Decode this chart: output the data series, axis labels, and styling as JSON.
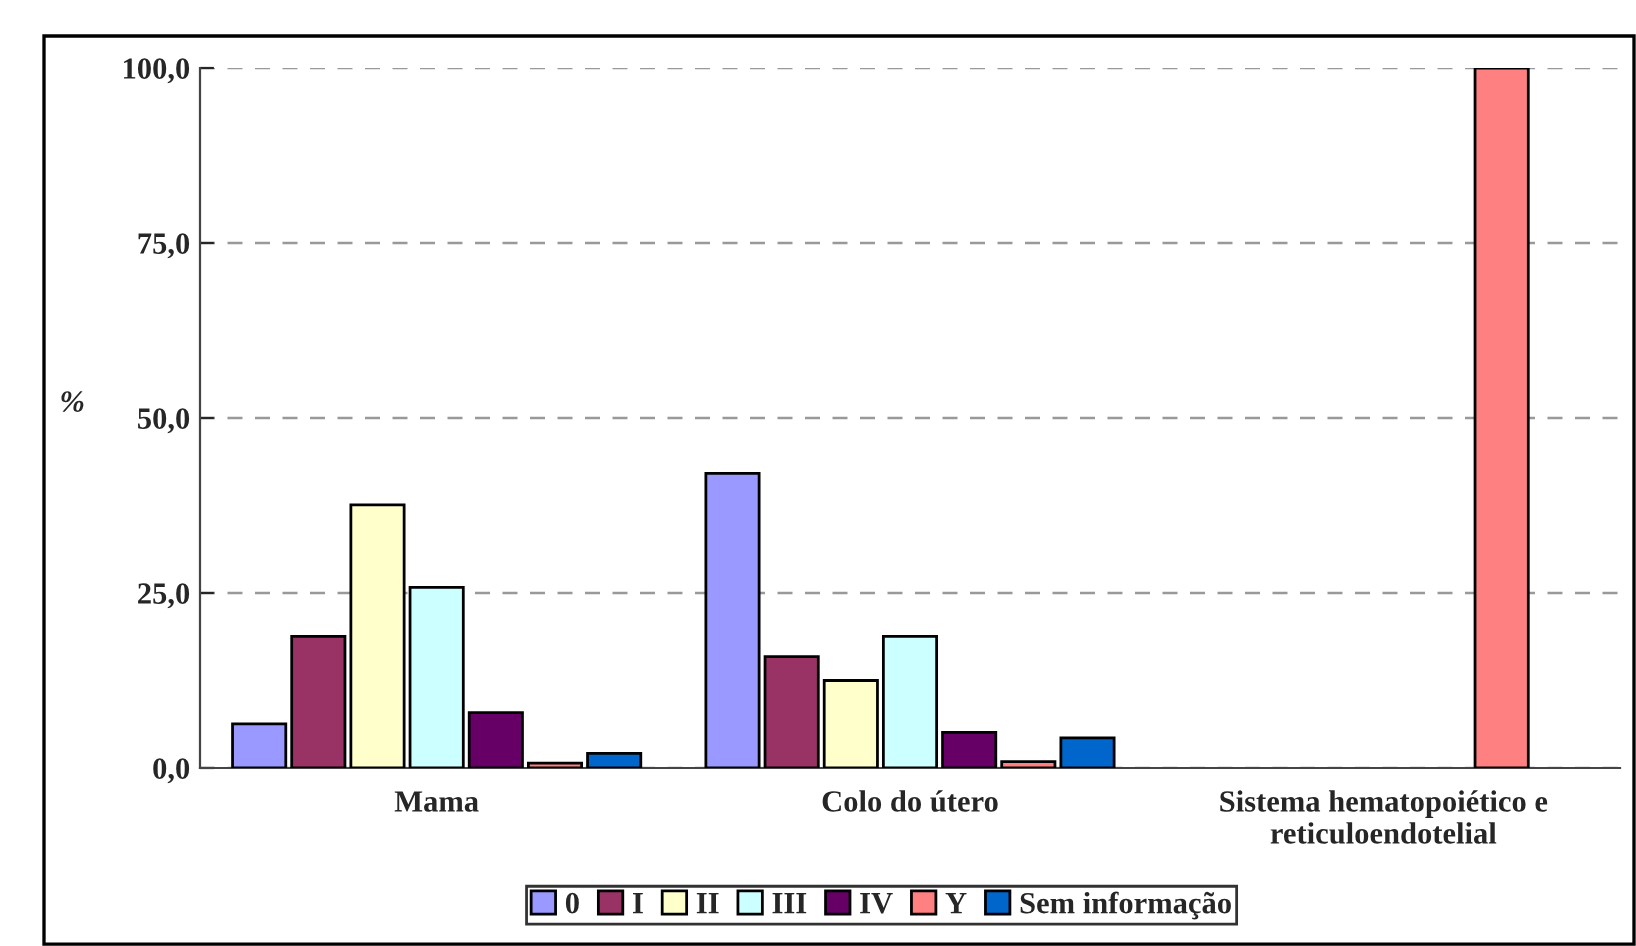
{
  "chart_data": {
    "type": "bar",
    "ylabel": "%",
    "categories": [
      "Mama",
      "Colo do útero",
      "Sistema hematopoiético e\nreticuloendotelial"
    ],
    "series": [
      {
        "name": "0",
        "color": "#9999ff",
        "values": [
          6.3,
          42.1,
          null
        ]
      },
      {
        "name": "I",
        "color": "#993366",
        "values": [
          18.8,
          15.9,
          null
        ]
      },
      {
        "name": "II",
        "color": "#ffffcc",
        "values": [
          37.6,
          12.5,
          null
        ]
      },
      {
        "name": "III",
        "color": "#ccffff",
        "values": [
          25.8,
          18.8,
          null
        ]
      },
      {
        "name": "IV",
        "color": "#660066",
        "values": [
          7.9,
          5.1,
          null
        ]
      },
      {
        "name": "Y",
        "color": "#ff8080",
        "values": [
          0.7,
          0.9,
          100
        ]
      },
      {
        "name": "Sem informação",
        "color": "#0066cc",
        "values": [
          2.1,
          4.3,
          null
        ]
      }
    ],
    "ylim": [
      0,
      100
    ],
    "yticks": [
      {
        "value": 0,
        "label": "0,0"
      },
      {
        "value": 25,
        "label": "25,0"
      },
      {
        "value": 50,
        "label": "50,0"
      },
      {
        "value": 75,
        "label": "75,0"
      },
      {
        "value": 100,
        "label": "100,0"
      }
    ],
    "grid": "y",
    "legend": "bottom"
  }
}
